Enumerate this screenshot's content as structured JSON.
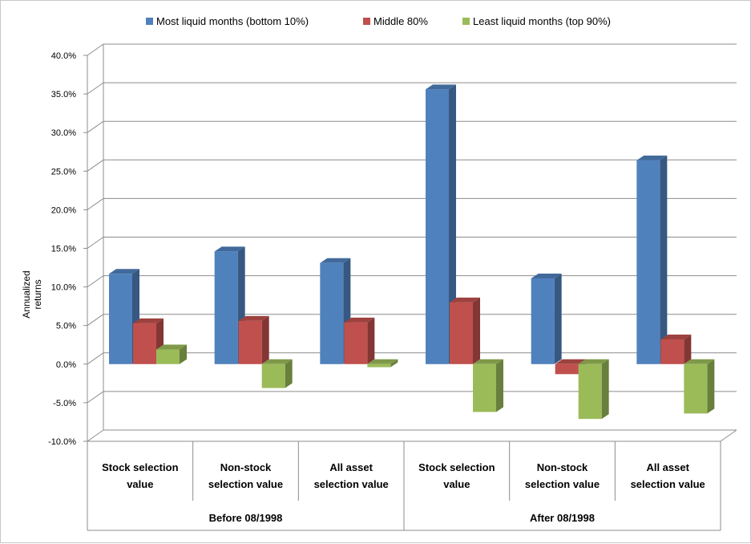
{
  "chart_data": {
    "type": "bar",
    "title": "",
    "ylabel_lines": [
      "Annualized",
      "returns"
    ],
    "ylim": [
      -10,
      40
    ],
    "ytick_labels": [
      "40.0%",
      "35.0%",
      "30.0%",
      "25.0%",
      "20.0%",
      "15.0%",
      "10.0%",
      "5.0%",
      "0.0%",
      "-5.0%",
      "-10.0%"
    ],
    "ytick_values": [
      40,
      35,
      30,
      25,
      20,
      15,
      10,
      5,
      0,
      -5,
      -10
    ],
    "categories": [
      {
        "line1": "Stock selection",
        "line2": "value"
      },
      {
        "line1": "Non-stock",
        "line2": "selection value"
      },
      {
        "line1": "All asset",
        "line2": "selection value"
      },
      {
        "line1": "Stock selection",
        "line2": "value"
      },
      {
        "line1": "Non-stock",
        "line2": "selection value"
      },
      {
        "line1": "All asset",
        "line2": "selection value"
      }
    ],
    "groups": [
      {
        "label": "Before 08/1998",
        "span": 3
      },
      {
        "label": "After 08/1998",
        "span": 3
      }
    ],
    "series": [
      {
        "name": "Most liquid months (bottom 10%)",
        "color": "#4F81BD",
        "values": [
          11.7,
          14.6,
          13.1,
          35.6,
          11.1,
          26.4
        ]
      },
      {
        "name": "Middle 80%",
        "color": "#C0504D",
        "values": [
          5.3,
          5.6,
          5.4,
          8.0,
          -1.3,
          3.2
        ]
      },
      {
        "name": "Least liquid months (top 90%)",
        "color": "#9BBB59",
        "values": [
          1.9,
          -3.1,
          -0.4,
          -6.2,
          -7.1,
          -6.4
        ]
      }
    ],
    "legend_position": "top",
    "grid": true
  }
}
